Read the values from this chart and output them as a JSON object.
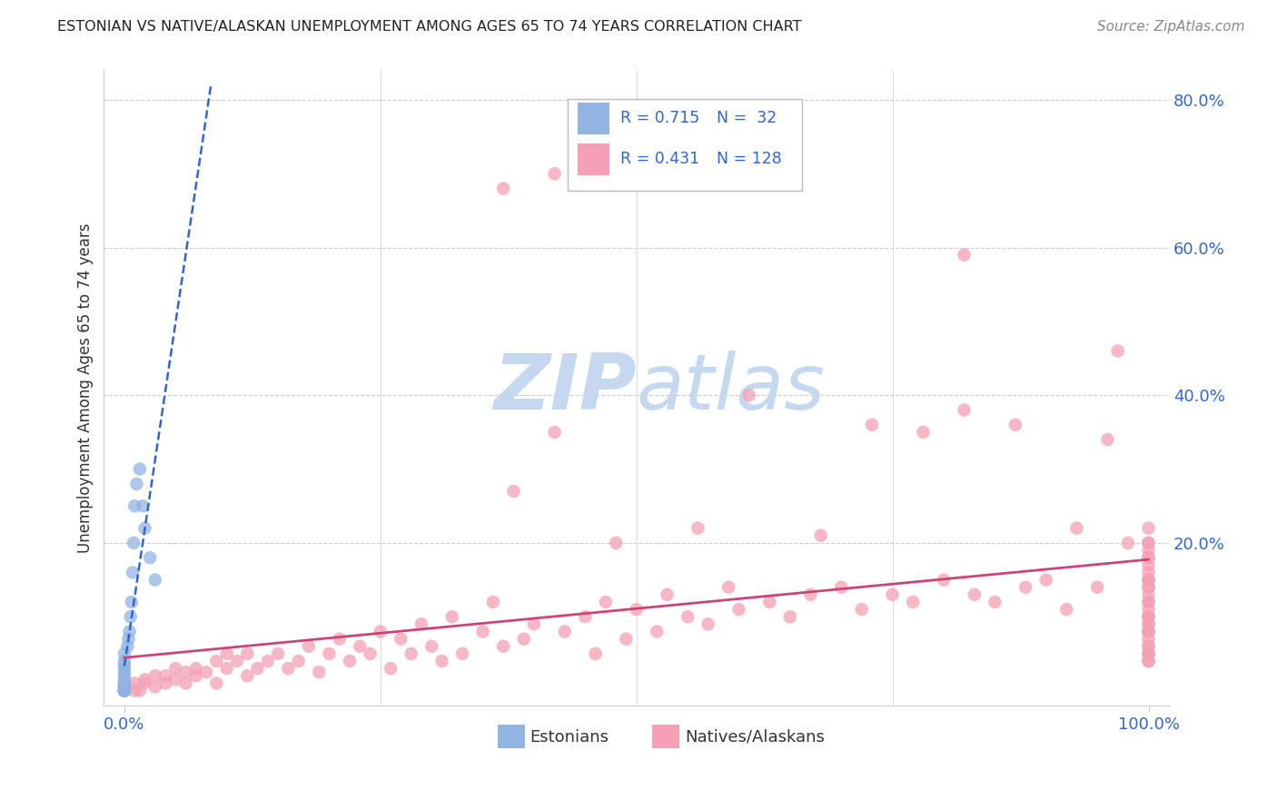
{
  "title": "ESTONIAN VS NATIVE/ALASKAN UNEMPLOYMENT AMONG AGES 65 TO 74 YEARS CORRELATION CHART",
  "source": "Source: ZipAtlas.com",
  "ylabel": "Unemployment Among Ages 65 to 74 years",
  "xlim": [
    -0.02,
    1.02
  ],
  "ylim": [
    -0.02,
    0.84
  ],
  "blue_color": "#92b4e3",
  "pink_color": "#f4a0b5",
  "blue_line_color": "#3366cc",
  "pink_line_color": "#cc4477",
  "watermark_zip": "ZIP",
  "watermark_atlas": "atlas",
  "watermark_color": "#c5d8ef",
  "bg_color": "#ffffff",
  "grid_color": "#cccccc",
  "title_color": "#222222",
  "axis_label_color": "#333333",
  "tick_color": "#3366cc",
  "legend_text_color": "#3366cc",
  "est_x": [
    0.0,
    0.0,
    0.0,
    0.0,
    0.0,
    0.0,
    0.0,
    0.0,
    0.0,
    0.0,
    0.0,
    0.0,
    0.0,
    0.0,
    0.0,
    0.0,
    0.0,
    0.0,
    0.003,
    0.004,
    0.005,
    0.006,
    0.007,
    0.008,
    0.009,
    0.01,
    0.012,
    0.015,
    0.018,
    0.02,
    0.025,
    0.03
  ],
  "est_y": [
    0.0,
    0.0,
    0.0,
    0.0,
    0.0,
    0.0,
    0.0,
    0.005,
    0.007,
    0.01,
    0.01,
    0.015,
    0.02,
    0.025,
    0.03,
    0.035,
    0.04,
    0.05,
    0.06,
    0.07,
    0.08,
    0.1,
    0.12,
    0.16,
    0.2,
    0.25,
    0.28,
    0.3,
    0.25,
    0.22,
    0.18,
    0.15
  ],
  "nat_x": [
    0.0,
    0.0,
    0.0,
    0.0,
    0.0,
    0.0,
    0.01,
    0.01,
    0.015,
    0.02,
    0.02,
    0.03,
    0.03,
    0.04,
    0.04,
    0.05,
    0.05,
    0.06,
    0.06,
    0.07,
    0.07,
    0.08,
    0.09,
    0.09,
    0.1,
    0.1,
    0.11,
    0.12,
    0.12,
    0.13,
    0.14,
    0.15,
    0.16,
    0.17,
    0.18,
    0.19,
    0.2,
    0.21,
    0.22,
    0.23,
    0.24,
    0.25,
    0.26,
    0.27,
    0.28,
    0.29,
    0.3,
    0.31,
    0.32,
    0.33,
    0.35,
    0.36,
    0.37,
    0.38,
    0.39,
    0.4,
    0.42,
    0.43,
    0.45,
    0.46,
    0.47,
    0.48,
    0.49,
    0.5,
    0.52,
    0.53,
    0.55,
    0.56,
    0.57,
    0.59,
    0.6,
    0.61,
    0.63,
    0.65,
    0.67,
    0.68,
    0.7,
    0.72,
    0.73,
    0.75,
    0.77,
    0.78,
    0.8,
    0.82,
    0.83,
    0.85,
    0.87,
    0.88,
    0.9,
    0.92,
    0.93,
    0.95,
    0.96,
    0.97,
    0.98,
    1.0,
    1.0,
    1.0,
    1.0,
    1.0,
    1.0,
    1.0,
    1.0,
    1.0,
    1.0,
    1.0,
    1.0,
    1.0,
    1.0,
    1.0,
    1.0,
    1.0,
    1.0,
    1.0,
    1.0,
    1.0,
    1.0,
    1.0,
    1.0,
    1.0,
    1.0,
    1.0,
    1.0,
    1.0,
    1.0,
    1.0,
    1.0,
    1.0
  ],
  "nat_y": [
    0.0,
    0.0,
    0.0,
    0.005,
    0.008,
    0.01,
    0.0,
    0.01,
    0.0,
    0.01,
    0.015,
    0.005,
    0.02,
    0.01,
    0.02,
    0.015,
    0.03,
    0.01,
    0.025,
    0.02,
    0.03,
    0.025,
    0.01,
    0.04,
    0.03,
    0.05,
    0.04,
    0.02,
    0.05,
    0.03,
    0.04,
    0.05,
    0.03,
    0.04,
    0.06,
    0.025,
    0.05,
    0.07,
    0.04,
    0.06,
    0.05,
    0.08,
    0.03,
    0.07,
    0.05,
    0.09,
    0.06,
    0.04,
    0.1,
    0.05,
    0.08,
    0.12,
    0.06,
    0.27,
    0.07,
    0.09,
    0.35,
    0.08,
    0.1,
    0.05,
    0.12,
    0.2,
    0.07,
    0.11,
    0.08,
    0.13,
    0.1,
    0.22,
    0.09,
    0.14,
    0.11,
    0.4,
    0.12,
    0.1,
    0.13,
    0.21,
    0.14,
    0.11,
    0.36,
    0.13,
    0.12,
    0.35,
    0.15,
    0.38,
    0.13,
    0.12,
    0.36,
    0.14,
    0.15,
    0.11,
    0.22,
    0.14,
    0.34,
    0.46,
    0.2,
    0.15,
    0.05,
    0.1,
    0.04,
    0.14,
    0.08,
    0.18,
    0.12,
    0.05,
    0.1,
    0.04,
    0.15,
    0.09,
    0.19,
    0.06,
    0.14,
    0.08,
    0.2,
    0.11,
    0.05,
    0.16,
    0.1,
    0.22,
    0.07,
    0.13,
    0.18,
    0.06,
    0.12,
    0.08,
    0.2,
    0.15,
    0.09,
    0.17
  ]
}
